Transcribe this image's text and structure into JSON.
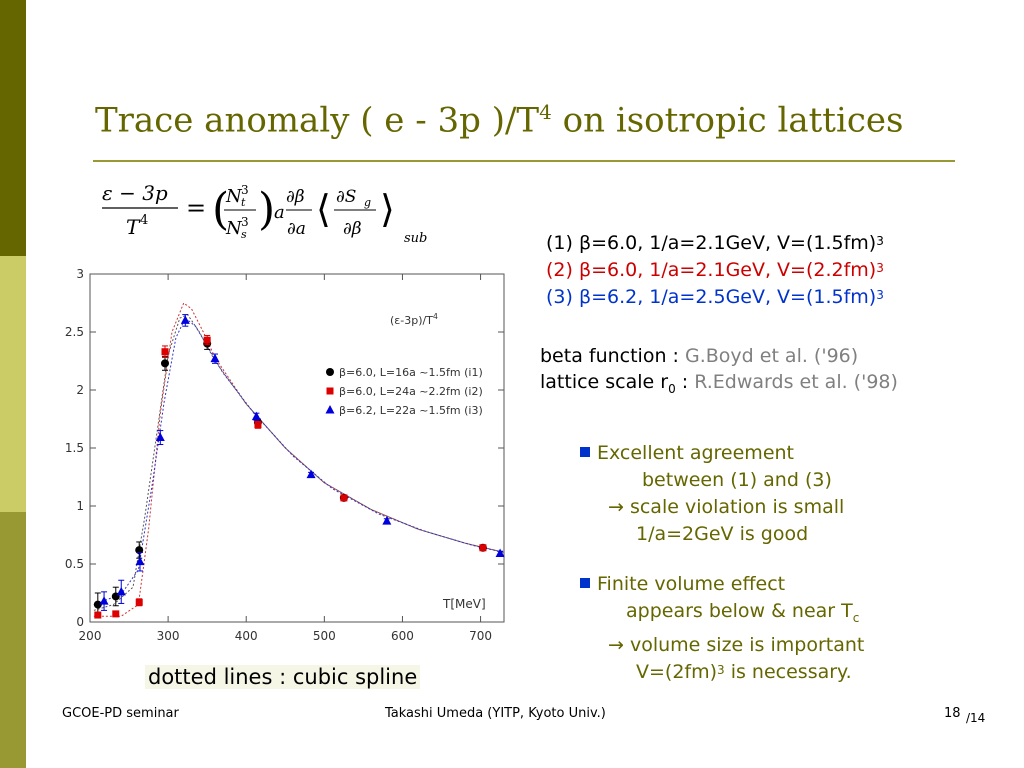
{
  "slide": {
    "title_main": "Trace anomaly   ( e - 3p )/T",
    "title_sup": "4",
    "title_rest": " on isotropic lattices"
  },
  "params": [
    {
      "text": "(1) β=6.0, 1/a=2.1GeV, V=(1.5fm)",
      "sup": "3",
      "color": "#000000"
    },
    {
      "text": "(2) β=6.0, 1/a=2.1GeV, V=(2.2fm)",
      "sup": "3",
      "color": "#cc0000"
    },
    {
      "text": "(3) β=6.2, 1/a=2.5GeV, V=(1.5fm)",
      "sup": "3",
      "color": "#0033cc"
    }
  ],
  "refs": {
    "beta_label": "beta function  : ",
    "beta_cite": "G.Boyd et al. ('96)",
    "scale_label": "lattice scale r",
    "scale_sub": "0",
    "scale_colon": " : ",
    "scale_cite": "R.Edwards et al. ('98)"
  },
  "bullets": {
    "b1_line1": "Excellent agreement",
    "b1_line2": "between (1) and (3)",
    "b1_line3": "→ scale violation is small",
    "b1_line4": "1/a=2GeV is good",
    "b2_line1": "Finite volume effect",
    "b2_line2a": "appears below & near T",
    "b2_line2sub": "c",
    "b2_line3": "→ volume size is important",
    "b2_line4a": "V=(2fm)",
    "b2_line4sup": "3",
    "b2_line4b": " is necessary."
  },
  "caption": "dotted lines : cubic spline",
  "footer": {
    "left": "GCOE-PD seminar",
    "middle": "Takashi Umeda (YITP, Kyoto Univ.)",
    "page": "18",
    "total": "/14"
  },
  "formula": {
    "lhs_num": "ε − 3p",
    "lhs_den": "T",
    "lhs_den_sup": "4",
    "nt": "N",
    "nt_sub": "t",
    "nt_sup": "3",
    "ns": "N",
    "ns_sub": "s",
    "ns_sup": "3",
    "a": "a",
    "dbeta": "∂β",
    "da": "∂a",
    "dsg": "∂S",
    "dsg_sub": "g",
    "dbeta2": "∂β",
    "sub": "sub"
  },
  "chart_data": {
    "type": "scatter",
    "title": "(ε-3p)/T",
    "title_sup": "4",
    "xlabel": "T[MeV]",
    "ylabel": "",
    "xlim": [
      200,
      730
    ],
    "ylim": [
      0,
      3
    ],
    "xticks": [
      200,
      300,
      400,
      500,
      600,
      700
    ],
    "yticks": [
      0,
      0.5,
      1,
      1.5,
      2,
      2.5,
      3
    ],
    "ytick_labels": [
      "0",
      "0.5",
      "1",
      "1.5",
      "2",
      "2.5",
      "3"
    ],
    "legend_position": "middle-right",
    "series": [
      {
        "name": "β=6.0, L=16a ~1.5fm (i1)",
        "marker": "circle",
        "color": "#000000",
        "points": [
          [
            210,
            0.15
          ],
          [
            233,
            0.22
          ],
          [
            263,
            0.62
          ],
          [
            296,
            2.23
          ],
          [
            350,
            2.4
          ],
          [
            415,
            1.72
          ],
          [
            525,
            1.07
          ],
          [
            703,
            0.64
          ]
        ],
        "errors": [
          0.1,
          0.08,
          0.07,
          0.06,
          0.05,
          0.03,
          0.02,
          0.02
        ]
      },
      {
        "name": "β=6.0, L=24a ~2.2fm (i2)",
        "marker": "square",
        "color": "#dd0000",
        "points": [
          [
            210,
            0.06
          ],
          [
            233,
            0.07
          ],
          [
            263,
            0.17
          ],
          [
            296,
            2.33
          ],
          [
            350,
            2.43
          ],
          [
            415,
            1.7
          ],
          [
            525,
            1.07
          ],
          [
            703,
            0.64
          ]
        ],
        "errors": [
          0.02,
          0.02,
          0.03,
          0.05,
          0.04,
          0.03,
          0.02,
          0.02
        ]
      },
      {
        "name": "β=6.2, L=22a ~1.5fm (i3)",
        "marker": "triangle",
        "color": "#0000dd",
        "points": [
          [
            218,
            0.18
          ],
          [
            240,
            0.26
          ],
          [
            264,
            0.52
          ],
          [
            290,
            1.59
          ],
          [
            322,
            2.6
          ],
          [
            360,
            2.27
          ],
          [
            413,
            1.77
          ],
          [
            483,
            1.27
          ],
          [
            580,
            0.87
          ],
          [
            725,
            0.59
          ]
        ],
        "errors": [
          0.08,
          0.1,
          0.08,
          0.06,
          0.05,
          0.04,
          0.03,
          0.02,
          0.02,
          0.02
        ]
      }
    ],
    "splines": [
      {
        "color": "#555555",
        "points": [
          [
            205,
            0.1
          ],
          [
            230,
            0.15
          ],
          [
            255,
            0.3
          ],
          [
            270,
            0.9
          ],
          [
            285,
            1.6
          ],
          [
            300,
            2.3
          ],
          [
            315,
            2.62
          ],
          [
            325,
            2.65
          ],
          [
            340,
            2.5
          ],
          [
            360,
            2.25
          ],
          [
            400,
            1.88
          ],
          [
            450,
            1.5
          ],
          [
            500,
            1.2
          ],
          [
            560,
            0.97
          ],
          [
            620,
            0.8
          ],
          [
            680,
            0.68
          ],
          [
            730,
            0.6
          ]
        ]
      },
      {
        "color": "#cc3333",
        "points": [
          [
            205,
            0.05
          ],
          [
            240,
            0.05
          ],
          [
            262,
            0.15
          ],
          [
            275,
            0.8
          ],
          [
            290,
            1.8
          ],
          [
            305,
            2.5
          ],
          [
            320,
            2.75
          ],
          [
            330,
            2.7
          ],
          [
            345,
            2.5
          ],
          [
            360,
            2.28
          ],
          [
            400,
            1.88
          ],
          [
            450,
            1.5
          ],
          [
            500,
            1.2
          ],
          [
            560,
            0.97
          ],
          [
            620,
            0.8
          ],
          [
            680,
            0.68
          ],
          [
            730,
            0.6
          ]
        ]
      },
      {
        "color": "#3333cc",
        "points": [
          [
            205,
            0.15
          ],
          [
            240,
            0.24
          ],
          [
            262,
            0.45
          ],
          [
            280,
            1.2
          ],
          [
            295,
            1.9
          ],
          [
            310,
            2.45
          ],
          [
            322,
            2.62
          ],
          [
            335,
            2.55
          ],
          [
            350,
            2.38
          ],
          [
            370,
            2.15
          ],
          [
            410,
            1.8
          ],
          [
            460,
            1.43
          ],
          [
            510,
            1.15
          ],
          [
            570,
            0.93
          ],
          [
            630,
            0.78
          ],
          [
            690,
            0.66
          ],
          [
            730,
            0.6
          ]
        ]
      }
    ]
  }
}
